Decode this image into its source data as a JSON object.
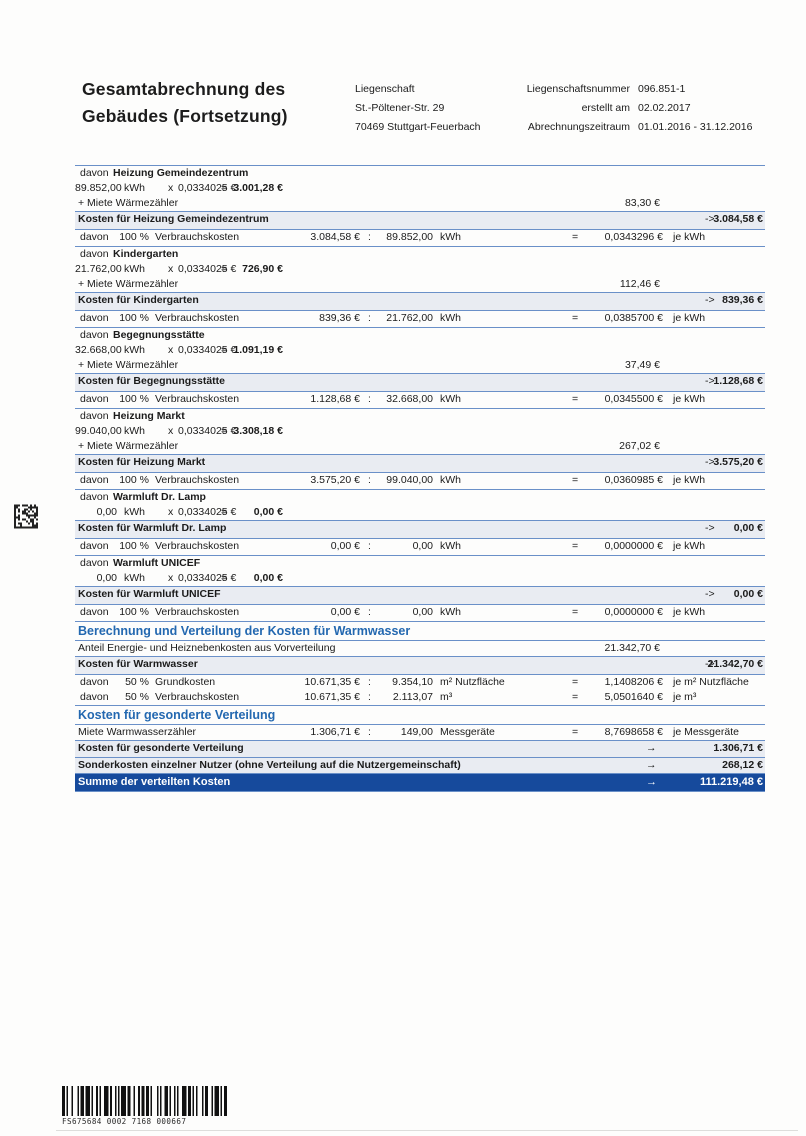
{
  "colors": {
    "rule_blue": "#6a90c8",
    "header_blue": "#2368b0",
    "summe_bar_blue": "#164a9c",
    "band_gray": "#e9ecf2"
  },
  "header": {
    "title_line1": "Gesamtabrechnung des",
    "title_line2": "Gebäudes (Fortsetzung)",
    "property": {
      "line1": "Liegenschaft",
      "line2": "St.-Pöltener-Str. 29",
      "line3": "70469 Stuttgart-Feuerbach"
    },
    "meta": [
      {
        "label": "Liegenschaftsnummer",
        "value": "096.851-1"
      },
      {
        "label": "erstellt am",
        "value": "02.02.2017"
      },
      {
        "label": "Abrechnungszeitraum",
        "value": "01.01.2016 - 31.12.2016"
      }
    ]
  },
  "labels": {
    "davon": "davon",
    "pct100": "100 %",
    "verbrauchskosten": "Verbrauchskosten",
    "miete_waermezaehler": "+ Miete Wärmezähler",
    "op_x": "x",
    "eq": "=",
    "colon": ":",
    "arrow": "->",
    "arrow2": "→",
    "price_per_kwh": "0,0334025 €",
    "kwh": "kWh",
    "je_kwh": "je kWh"
  },
  "heat_sections": [
    {
      "name": "Heizung Gemeindezentrum",
      "qty": "89.852,00",
      "result": "3.001,28 €",
      "miete": "83,30 €",
      "total_label": "Kosten für Heizung Gemeindezentrum",
      "total": "3.084,58 €",
      "rate_amount": "3.084,58 €",
      "rate_qty": "89.852,00",
      "rate": "0,0343296 €"
    },
    {
      "name": "Kindergarten",
      "qty": "21.762,00",
      "result": "726,90 €",
      "miete": "112,46 €",
      "total_label": "Kosten für Kindergarten",
      "total": "839,36 €",
      "rate_amount": "839,36 €",
      "rate_qty": "21.762,00",
      "rate": "0,0385700 €"
    },
    {
      "name": "Begegnungsstätte",
      "qty": "32.668,00",
      "result": "1.091,19 €",
      "miete": "37,49 €",
      "total_label": "Kosten für Begegnungsstätte",
      "total": "1.128,68 €",
      "rate_amount": "1.128,68 €",
      "rate_qty": "32.668,00",
      "rate": "0,0345500 €"
    },
    {
      "name": "Heizung Markt",
      "qty": "99.040,00",
      "result": "3.308,18 €",
      "miete": "267,02 €",
      "total_label": "Kosten für Heizung Markt",
      "total": "3.575,20 €",
      "rate_amount": "3.575,20 €",
      "rate_qty": "99.040,00",
      "rate": "0,0360985 €"
    },
    {
      "name": "Warmluft Dr. Lamp",
      "qty": "0,00",
      "result": "0,00 €",
      "miete": null,
      "total_label": "Kosten für Warmluft Dr. Lamp",
      "total": "0,00 €",
      "rate_amount": "0,00 €",
      "rate_qty": "0,00",
      "rate": "0,0000000 €"
    },
    {
      "name": "Warmluft UNICEF",
      "qty": "0,00",
      "result": "0,00 €",
      "miete": null,
      "total_label": "Kosten für Warmluft UNICEF",
      "total": "0,00 €",
      "rate_amount": "0,00 €",
      "rate_qty": "0,00",
      "rate": "0,0000000 €"
    }
  ],
  "warmwasser": {
    "header": "Berechnung und Verteilung der Kosten für Warmwasser",
    "anteil_label": "Anteil Energie- und Heiznebenkosten aus Vorverteilung",
    "anteil_value": "21.342,70 €",
    "total_label": "Kosten für Warmwasser",
    "total": "21.342,70 €",
    "rows": [
      {
        "davon": "davon",
        "pct": "50 %",
        "label": "Grundkosten",
        "amount": "10.671,35 €",
        "colon": ":",
        "qty": "9.354,10",
        "unit": "m² Nutzfläche",
        "eq": "=",
        "rate": "1,1408206 €",
        "rate_unit": "je m² Nutzfläche"
      },
      {
        "davon": "davon",
        "pct": "50 %",
        "label": "Verbrauchskosten",
        "amount": "10.671,35 €",
        "colon": ":",
        "qty": "2.113,07",
        "unit": "m³",
        "eq": "=",
        "rate": "5,0501640 €",
        "rate_unit": "je m³"
      }
    ]
  },
  "gesondert": {
    "header": "Kosten für gesonderte Verteilung",
    "miete_label": "Miete Warmwasserzähler",
    "miete_amount": "1.306,71 €",
    "miete_colon": ":",
    "miete_qty": "149,00",
    "miete_unit": "Messgeräte",
    "miete_eq": "=",
    "miete_rate": "8,7698658 €",
    "miete_rate_unit": "je Messgeräte",
    "total_label": "Kosten für gesonderte Verteilung",
    "total": "1.306,71 €",
    "sonder_label": "Sonderkosten einzelner Nutzer (ohne Verteilung auf die Nutzergemeinschaft)",
    "sonder_total": "268,12 €"
  },
  "summe": {
    "label": "Summe der verteilten Kosten",
    "total": "111.219,48 €"
  },
  "barcode": {
    "text": "FS675684 0002 7168 000667"
  }
}
